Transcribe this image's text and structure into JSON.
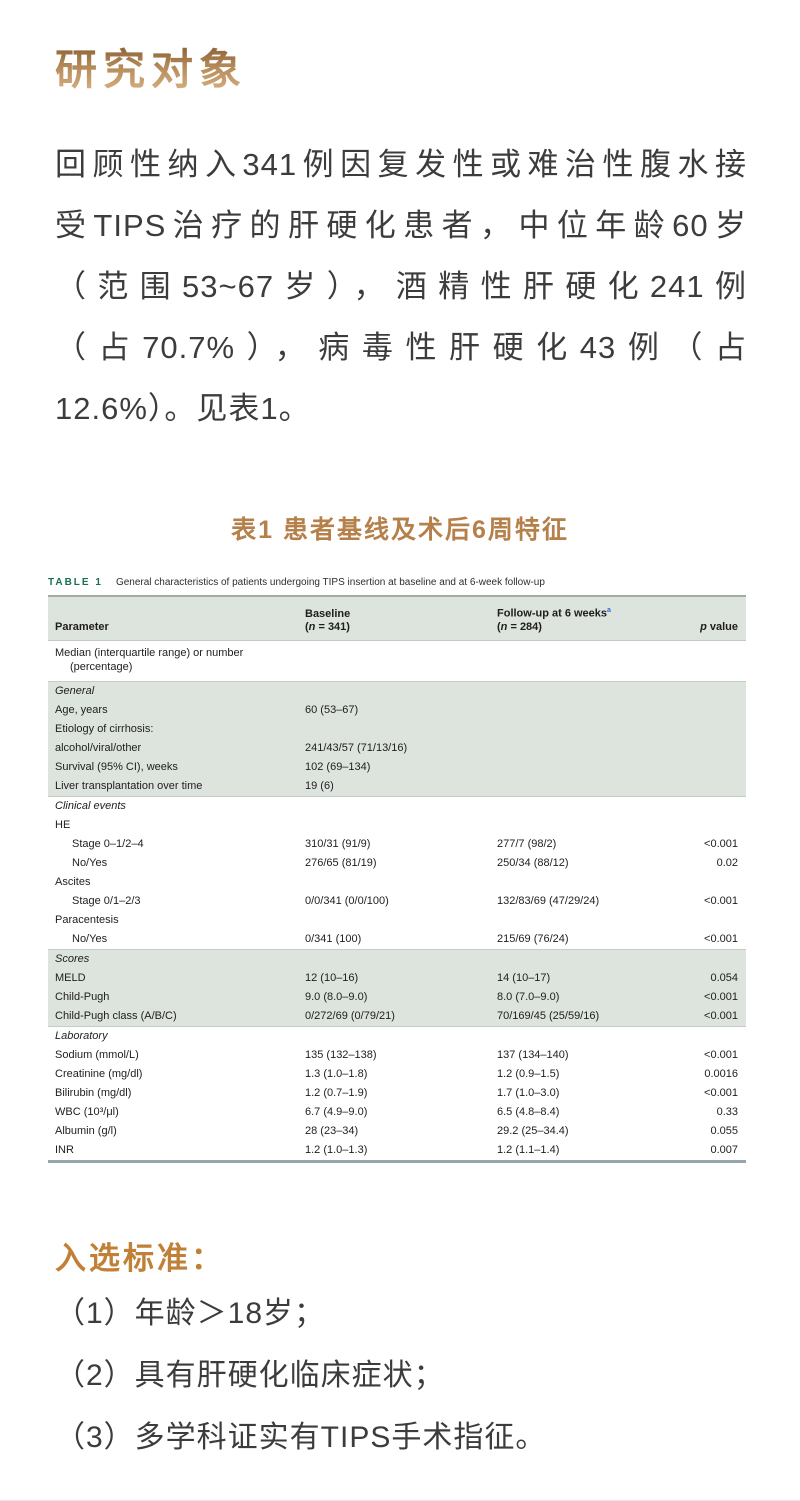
{
  "page": {
    "section_title": "研究对象",
    "intro_lines": [
      "回顾性纳入341例因复发性或难治性腹水接",
      "受TIPS治疗的肝硬化患者，中位年龄60岁",
      "（范围53~67岁），酒精性肝硬化241例",
      "（占70.7%），病毒性肝硬化43例（占",
      "12.6%）。见表1。"
    ],
    "table_title_cn": "表1 患者基线及术后6周特征",
    "criteria_title": "入选标准：",
    "criteria_items": [
      "（1）年龄＞18岁；",
      "（2）具有肝硬化临床症状；",
      "（3）多学科证实有TIPS手术指征。"
    ]
  },
  "colors": {
    "heading_gold_dark": "#8a6136",
    "heading_gold_light": "#dab384",
    "table_title_tan": "#b5804a",
    "criteria_orange": "#c08038",
    "caption_green": "#176e57",
    "superscript_blue": "#2e6bd6",
    "table_shade": "#dde3dd",
    "table_bottom_rule": "#97a5ae",
    "body_text": "#3c3c3c"
  },
  "table": {
    "caption_label": "TABLE 1",
    "caption_text": "General characteristics of patients undergoing TIPS insertion at baseline and at 6-week follow-up",
    "columns": {
      "parameter": "Parameter",
      "baseline_name": "Baseline",
      "baseline_n_open": "(",
      "baseline_n_var": "n",
      "baseline_n_rest": " = 341)",
      "followup_name": "Follow-up at 6 weeks",
      "followup_sup": "a",
      "followup_n_open": "(",
      "followup_n_var": "n",
      "followup_n_rest": " = 284)",
      "p_var": "p",
      "p_rest": " value"
    },
    "note_line1": "Median (interquartile range) or number",
    "note_line2": "(percentage)",
    "rows": [
      {
        "label": "General",
        "italic": true,
        "shade": true,
        "rule": true
      },
      {
        "label": "Age, years",
        "baseline": "60 (53–67)",
        "shade": true
      },
      {
        "label": "Etiology of cirrhosis:",
        "shade": true
      },
      {
        "label": "alcohol/viral/other",
        "baseline": "241/43/57 (71/13/16)",
        "shade": true
      },
      {
        "label": "Survival (95% CI), weeks",
        "baseline": "102 (69–134)",
        "shade": true
      },
      {
        "label": "Liver transplantation over time",
        "baseline": "19 (6)",
        "shade": true
      },
      {
        "label": "Clinical events",
        "italic": true,
        "rule": true
      },
      {
        "label": "HE"
      },
      {
        "label": "Stage 0–1/2–4",
        "indent": true,
        "baseline": "310/31 (91/9)",
        "followup": "277/7 (98/2)",
        "p": "<0.001"
      },
      {
        "label": "No/Yes",
        "indent": true,
        "baseline": "276/65 (81/19)",
        "followup": "250/34 (88/12)",
        "p": "0.02"
      },
      {
        "label": "Ascites"
      },
      {
        "label": "Stage 0/1–2/3",
        "indent": true,
        "baseline": "0/0/341 (0/0/100)",
        "followup": "132/83/69 (47/29/24)",
        "p": "<0.001"
      },
      {
        "label": "Paracentesis"
      },
      {
        "label": "No/Yes",
        "indent": true,
        "baseline": "0/341 (100)",
        "followup": "215/69 (76/24)",
        "p": "<0.001"
      },
      {
        "label": "Scores",
        "italic": true,
        "shade": true,
        "rule": true
      },
      {
        "label": "MELD",
        "baseline": "12 (10–16)",
        "followup": "14 (10–17)",
        "p": "0.054",
        "shade": true
      },
      {
        "label": "Child-Pugh",
        "baseline": "9.0 (8.0–9.0)",
        "followup": "8.0 (7.0–9.0)",
        "p": "<0.001",
        "shade": true
      },
      {
        "label": "Child-Pugh class (A/B/C)",
        "baseline": "0/272/69 (0/79/21)",
        "followup": "70/169/45 (25/59/16)",
        "p": "<0.001",
        "shade": true
      },
      {
        "label": "Laboratory",
        "italic": true,
        "rule": true
      },
      {
        "label": "Sodium (mmol/L)",
        "baseline": "135 (132–138)",
        "followup": "137 (134–140)",
        "p": "<0.001"
      },
      {
        "label": "Creatinine (mg/dl)",
        "baseline": "1.3 (1.0–1.8)",
        "followup": "1.2 (0.9–1.5)",
        "p": "0.0016"
      },
      {
        "label": "Bilirubin (mg/dl)",
        "baseline": "1.2 (0.7–1.9)",
        "followup": "1.7 (1.0–3.0)",
        "p": "<0.001"
      },
      {
        "label": "WBC (10³/μl)",
        "baseline": "6.7 (4.9–9.0)",
        "followup": "6.5 (4.8–8.4)",
        "p": "0.33"
      },
      {
        "label": "Albumin (g/l)",
        "baseline": "28 (23–34)",
        "followup": "29.2 (25–34.4)",
        "p": "0.055"
      },
      {
        "label": "INR",
        "baseline": "1.2 (1.0–1.3)",
        "followup": "1.2 (1.1–1.4)",
        "p": "0.007"
      }
    ]
  }
}
